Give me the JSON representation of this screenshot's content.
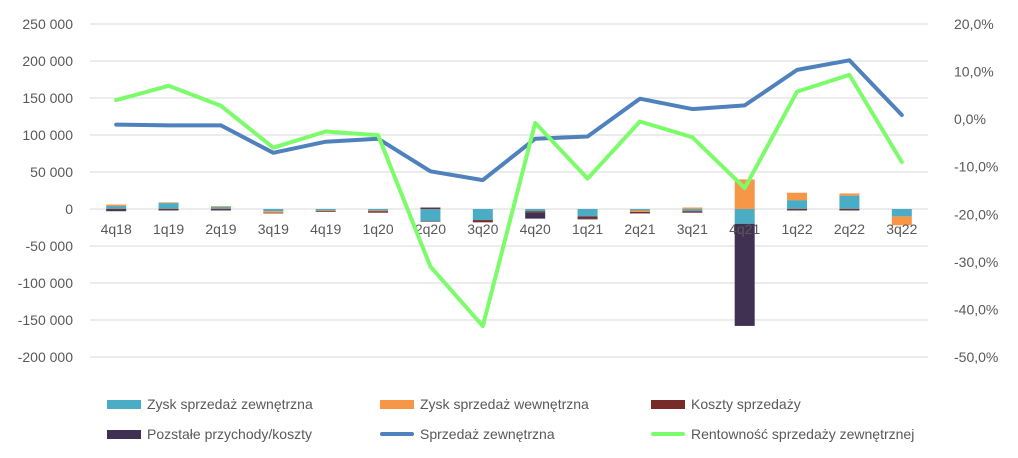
{
  "chart_data": {
    "type": "bar",
    "categories": [
      "4q18",
      "1q19",
      "2q19",
      "3q19",
      "4q19",
      "1q20",
      "2q20",
      "3q20",
      "4q20",
      "1q21",
      "2q21",
      "3q21",
      "4q21",
      "1q22",
      "2q22",
      "3q22"
    ],
    "stacked": true,
    "series": [
      {
        "name": "Zysk sprzedaż zewnętrzna",
        "type": "bar",
        "axis": "left",
        "color": "#4BACC6",
        "values": [
          4000,
          8000,
          3000,
          -3000,
          -2000,
          -2000,
          -16000,
          -15000,
          -3000,
          -10000,
          -2000,
          -3000,
          -20000,
          12000,
          18000,
          -10000
        ]
      },
      {
        "name": "Zysk sprzedaż wewnętrzna",
        "type": "bar",
        "axis": "left",
        "color": "#F79646",
        "values": [
          2000,
          1000,
          1000,
          -2000,
          -1000,
          -1000,
          0,
          0,
          0,
          0,
          -2000,
          2000,
          40000,
          10000,
          3000,
          -12000
        ]
      },
      {
        "name": "Koszty sprzedaży",
        "type": "bar",
        "axis": "left",
        "color": "#772C2A",
        "values": [
          -2000,
          -2000,
          -2000,
          -1000,
          -1000,
          -2000,
          2000,
          -3000,
          -2000,
          -3000,
          -2000,
          -2000,
          0,
          -2000,
          -2000,
          0
        ]
      },
      {
        "name": "Pozstałe przychody/koszty",
        "type": "bar",
        "axis": "left",
        "color": "#403152",
        "values": [
          -1000,
          0,
          0,
          0,
          0,
          0,
          -1000,
          0,
          -8000,
          -1000,
          0,
          0,
          -138000,
          0,
          0,
          0
        ]
      },
      {
        "name": "Sprzedaż zewnętrzna",
        "type": "line",
        "axis": "left",
        "color": "#4F81BD",
        "values": [
          114000,
          113000,
          113000,
          76000,
          91000,
          95000,
          51000,
          39000,
          95000,
          98000,
          149000,
          135000,
          140000,
          188000,
          201000,
          127000
        ]
      },
      {
        "name": "Rentowność sprzedaży zewnętrznej",
        "type": "line",
        "axis": "right",
        "color": "#7CFC6B",
        "values": [
          4.0,
          7.0,
          2.8,
          -6.0,
          -2.6,
          -3.4,
          -31.0,
          -43.5,
          -0.8,
          -12.5,
          -0.5,
          -3.8,
          -14.5,
          5.8,
          9.3,
          -9.0
        ]
      }
    ],
    "ylim": [
      -200000,
      250000
    ],
    "yticks": [
      "-200 000",
      "-150 000",
      "-100 000",
      "-50 000",
      "0",
      "50 000",
      "100 000",
      "150 000",
      "200 000",
      "250 000"
    ],
    "y2lim": [
      -50,
      20
    ],
    "y2ticks": [
      "-50,0%",
      "-40,0%",
      "-30,0%",
      "-20,0%",
      "-10,0%",
      "0,0%",
      "10,0%",
      "20,0%"
    ],
    "grid": true,
    "legend_position": "bottom"
  }
}
